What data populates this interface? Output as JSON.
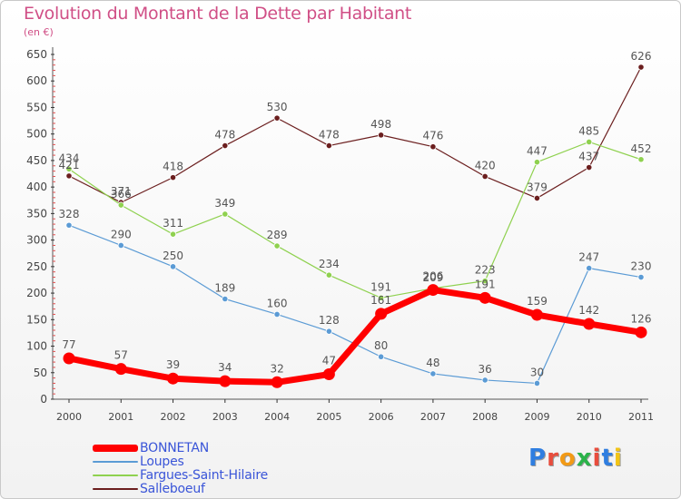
{
  "title": "Evolution du Montant de la Dette par Habitant",
  "subtitle": "(en €)",
  "brand": {
    "letters": [
      "P",
      "r",
      "o",
      "x",
      "i",
      "t",
      "i"
    ],
    "colors": [
      "#2f7ee0",
      "#e84d3d",
      "#f29a16",
      "#2bb34a",
      "#e84d3d",
      "#2f7ee0",
      "#f2c416"
    ]
  },
  "chart_data": {
    "type": "line",
    "x": [
      "2000",
      "2001",
      "2002",
      "2003",
      "2004",
      "2005",
      "2006",
      "2007",
      "2008",
      "2009",
      "2010",
      "2011"
    ],
    "ylim": [
      0,
      650
    ],
    "yticks": [
      0,
      50,
      100,
      150,
      200,
      250,
      300,
      350,
      400,
      450,
      500,
      550,
      600,
      650
    ],
    "grid": false,
    "legend_position": "bottom-left",
    "series": [
      {
        "name": "Salleboeuf",
        "color": "#6b1e1e",
        "width": 1.2,
        "values": [
          421,
          371,
          418,
          478,
          530,
          478,
          498,
          476,
          420,
          379,
          437,
          626
        ]
      },
      {
        "name": "Fargues-Saint-Hilaire",
        "color": "#8fd14f",
        "width": 1.2,
        "values": [
          434,
          366,
          311,
          349,
          289,
          234,
          191,
          209,
          223,
          447,
          485,
          452
        ]
      },
      {
        "name": "Loupes",
        "color": "#5b9bd5",
        "width": 1.2,
        "values": [
          328,
          290,
          250,
          189,
          160,
          128,
          80,
          48,
          36,
          30,
          247,
          230
        ]
      },
      {
        "name": "BONNETAN",
        "color": "#ff0000",
        "width": 7,
        "values": [
          77,
          57,
          39,
          34,
          32,
          47,
          161,
          206,
          191,
          159,
          142,
          126
        ]
      }
    ],
    "legend": [
      "BONNETAN",
      "Loupes",
      "Fargues-Saint-Hilaire",
      "Salleboeuf"
    ]
  }
}
